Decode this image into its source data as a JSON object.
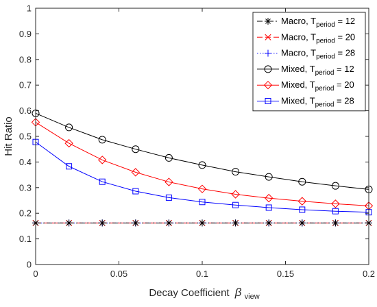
{
  "chart_data": {
    "type": "line",
    "xlabel": "Decay Coefficient",
    "xlabel_symbol": "β",
    "xlabel_subscript": "view",
    "ylabel": "Hit Ratio",
    "xlim": [
      0,
      0.2
    ],
    "ylim": [
      0,
      1
    ],
    "xticks": [
      0,
      0.05,
      0.1,
      0.15,
      0.2
    ],
    "xtick_labels": [
      "0",
      "0.05",
      "0.1",
      "0.15",
      "0.2"
    ],
    "yticks": [
      0,
      0.1,
      0.2,
      0.3,
      0.4,
      0.5,
      0.6,
      0.7,
      0.8,
      0.9,
      1
    ],
    "ytick_labels": [
      "0",
      "0.1",
      "0.2",
      "0.3",
      "0.4",
      "0.5",
      "0.6",
      "0.7",
      "0.8",
      "0.9",
      "1"
    ],
    "grid": false,
    "legend_position": "top-right",
    "x": [
      0,
      0.02,
      0.04,
      0.06,
      0.08,
      0.1,
      0.12,
      0.14,
      0.16,
      0.18,
      0.2
    ],
    "series": [
      {
        "name": "Macro, T",
        "subscript": "period",
        "suffix": " = 12",
        "color": "#000000",
        "dash": "8,3,2,3",
        "marker": "asterisk",
        "values": [
          0.162,
          0.162,
          0.162,
          0.162,
          0.162,
          0.162,
          0.162,
          0.162,
          0.162,
          0.162,
          0.162
        ]
      },
      {
        "name": "Macro, T",
        "subscript": "period",
        "suffix": " = 20",
        "color": "#ff0000",
        "dash": "8,4",
        "marker": "cross",
        "values": [
          0.162,
          0.162,
          0.162,
          0.162,
          0.162,
          0.162,
          0.162,
          0.162,
          0.162,
          0.162,
          0.162
        ]
      },
      {
        "name": "Macro, T",
        "subscript": "period",
        "suffix": " = 28",
        "color": "#0000ff",
        "dash": "1.5,2.5",
        "marker": "plus",
        "values": [
          0.162,
          0.162,
          0.162,
          0.162,
          0.162,
          0.162,
          0.162,
          0.162,
          0.162,
          0.162,
          0.162
        ]
      },
      {
        "name": "Mixed, T",
        "subscript": "period",
        "suffix": " = 12",
        "color": "#000000",
        "dash": "",
        "marker": "circle",
        "values": [
          0.59,
          0.535,
          0.487,
          0.45,
          0.416,
          0.388,
          0.362,
          0.342,
          0.323,
          0.307,
          0.293
        ]
      },
      {
        "name": "Mixed, T",
        "subscript": "period",
        "suffix": " = 20",
        "color": "#ff0000",
        "dash": "",
        "marker": "diamond",
        "values": [
          0.555,
          0.473,
          0.408,
          0.36,
          0.322,
          0.295,
          0.274,
          0.259,
          0.247,
          0.237,
          0.229
        ]
      },
      {
        "name": "Mixed, T",
        "subscript": "period",
        "suffix": " = 28",
        "color": "#0000ff",
        "dash": "",
        "marker": "square",
        "values": [
          0.478,
          0.383,
          0.323,
          0.286,
          0.261,
          0.244,
          0.232,
          0.222,
          0.214,
          0.208,
          0.204
        ]
      }
    ]
  }
}
